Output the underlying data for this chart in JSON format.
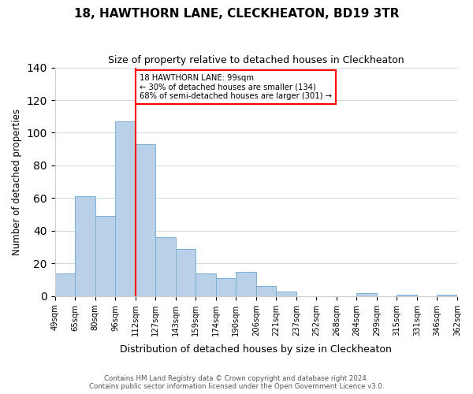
{
  "title": "18, HAWTHORN LANE, CLECKHEATON, BD19 3TR",
  "subtitle": "Size of property relative to detached houses in Cleckheaton",
  "xlabel": "Distribution of detached houses by size in Cleckheaton",
  "ylabel": "Number of detached properties",
  "bin_labels": [
    "49sqm",
    "65sqm",
    "80sqm",
    "96sqm",
    "112sqm",
    "127sqm",
    "143sqm",
    "159sqm",
    "174sqm",
    "190sqm",
    "206sqm",
    "221sqm",
    "237sqm",
    "252sqm",
    "268sqm",
    "284sqm",
    "299sqm",
    "315sqm",
    "331sqm",
    "346sqm",
    "362sqm"
  ],
  "bar_values": [
    14,
    61,
    49,
    107,
    93,
    36,
    29,
    14,
    11,
    15,
    6,
    3,
    0,
    0,
    0,
    2,
    0,
    1,
    0,
    1
  ],
  "bar_color": "#b8d0e8",
  "bar_edge_color": "#7aafd4",
  "vline_x": 3.5,
  "property_line_label": "18 HAWTHORN LANE: 99sqm",
  "annotation_line1": "← 30% of detached houses are smaller (134)",
  "annotation_line2": "68% of semi-detached houses are larger (301) →",
  "annotation_box_color": "white",
  "annotation_box_edge": "red",
  "vline_color": "red",
  "ylim": [
    0,
    140
  ],
  "yticks": [
    0,
    20,
    40,
    60,
    80,
    100,
    120,
    140
  ],
  "footer1": "Contains HM Land Registry data © Crown copyright and database right 2024.",
  "footer2": "Contains public sector information licensed under the Open Government Licence v3.0."
}
